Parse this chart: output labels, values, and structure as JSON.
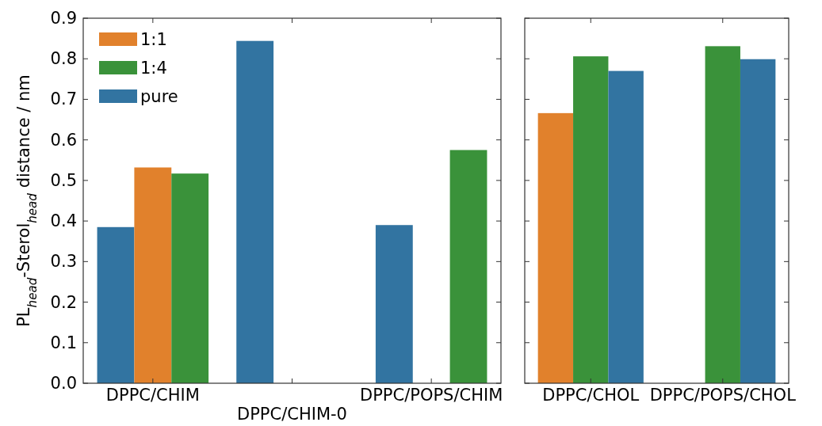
{
  "chart_data": [
    {
      "type": "bar",
      "ylabel": "PL$_{head}$-Sterol$_{head}$ distance / nm",
      "categories": [
        "DPPC/CHIM",
        "DPPC/CHIM-0",
        "DPPC/POPS/CHIM"
      ],
      "series": [
        {
          "name": "pure",
          "color": "#3274a1",
          "values": [
            0.385,
            0.844,
            0.39
          ]
        },
        {
          "name": "1:1",
          "color": "#e1812c",
          "values": [
            0.532,
            null,
            null
          ]
        },
        {
          "name": "1:4",
          "color": "#3a923a",
          "values": [
            0.517,
            null,
            0.575
          ]
        }
      ],
      "ylim": [
        0,
        0.9
      ],
      "yticks": [
        {
          "value": 0,
          "label": "0.0"
        },
        0.1,
        0.2,
        0.3,
        0.4,
        0.5,
        0.6,
        0.7,
        0.8,
        0.9
      ],
      "legend": "top left"
    },
    {
      "type": "bar",
      "categories": [
        "DPPC/CHOL",
        "DPPC/POPS/CHOL"
      ],
      "series": [
        {
          "color": "#e1812c",
          "values": [
            0.666,
            null
          ]
        },
        {
          "color": "#3a923a",
          "values": [
            0.806,
            0.831
          ]
        },
        {
          "color": "#3274a1",
          "values": [
            0.77,
            0.799
          ]
        }
      ],
      "ylim": [
        0,
        0.9
      ],
      "yticks": [
        {
          "value": 0,
          "label": null
        },
        {
          "value": 0.1,
          "label": null
        },
        {
          "value": 0.2,
          "label": null
        },
        {
          "value": 0.3,
          "label": null
        },
        {
          "value": 0.4,
          "label": null
        },
        {
          "value": 0.5,
          "label": null
        },
        {
          "value": 0.6,
          "label": null
        },
        {
          "value": 0.7,
          "label": null
        },
        {
          "value": 0.8,
          "label": null
        },
        {
          "value": 0.9,
          "label": null
        }
      ],
      "tick_labels": "x"
    }
  ]
}
